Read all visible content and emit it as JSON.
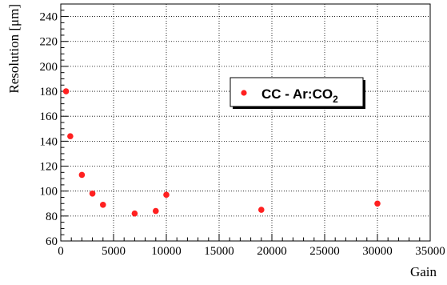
{
  "chart_data": {
    "type": "scatter",
    "xlabel": "Gain",
    "ylabel": "Resolution [μm]",
    "xlim": [
      0,
      35000
    ],
    "ylim": [
      60,
      250
    ],
    "x_ticks": [
      0,
      5000,
      10000,
      15000,
      20000,
      25000,
      30000,
      35000
    ],
    "x_tick_labels": [
      "0",
      "5000",
      "10000",
      "15000",
      "20000",
      "25000",
      "30000",
      "35000"
    ],
    "y_ticks": [
      60,
      80,
      100,
      120,
      140,
      160,
      180,
      200,
      220,
      240
    ],
    "y_tick_labels": [
      "60",
      "80",
      "100",
      "120",
      "140",
      "160",
      "180",
      "200",
      "220",
      "240"
    ],
    "grid": true,
    "grid_style": "dotted",
    "legend": {
      "placement": "center-right",
      "entries": [
        {
          "label": "CC - Ar:CO",
          "subscript": "2"
        }
      ]
    },
    "series": [
      {
        "name": "CC - Ar:CO2",
        "color": "#ff2020",
        "points": [
          {
            "x": 500,
            "y": 180
          },
          {
            "x": 900,
            "y": 144
          },
          {
            "x": 2000,
            "y": 113
          },
          {
            "x": 3000,
            "y": 98
          },
          {
            "x": 4000,
            "y": 89
          },
          {
            "x": 7000,
            "y": 82
          },
          {
            "x": 9000,
            "y": 84
          },
          {
            "x": 10000,
            "y": 97
          },
          {
            "x": 19000,
            "y": 85
          },
          {
            "x": 30000,
            "y": 90
          }
        ]
      }
    ]
  }
}
